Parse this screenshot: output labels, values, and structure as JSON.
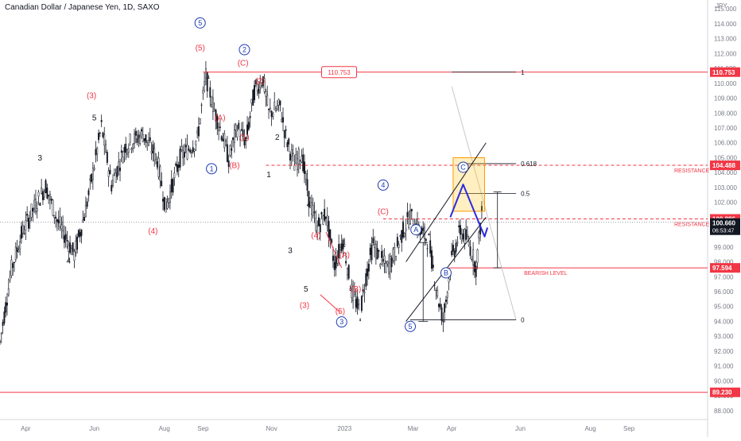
{
  "title": "Canadian Dollar / Japanese Yen, 1D, SAXO",
  "chart_data": {
    "type": "candlestick",
    "currency": "JPY",
    "ylim": [
      87.4,
      115.6
    ],
    "xlim": [
      0,
      495
    ],
    "grid": false,
    "y_ticks": [
      88,
      89,
      90,
      91,
      92,
      93,
      94,
      95,
      96,
      97,
      98,
      99,
      100,
      101,
      102,
      103,
      104,
      105,
      106,
      107,
      108,
      109,
      110,
      111,
      112,
      113,
      114,
      115
    ],
    "x_ticks": [
      {
        "label": "Apr",
        "x": 18
      },
      {
        "label": "Jun",
        "x": 66
      },
      {
        "label": "Aug",
        "x": 115
      },
      {
        "label": "Sep",
        "x": 142
      },
      {
        "label": "Nov",
        "x": 190
      },
      {
        "label": "2023",
        "x": 241
      },
      {
        "label": "Mar",
        "x": 289
      },
      {
        "label": "Apr",
        "x": 316
      },
      {
        "label": "Jun",
        "x": 364
      },
      {
        "label": "Aug",
        "x": 413
      },
      {
        "label": "Sep",
        "x": 440
      }
    ],
    "price_path": [
      [
        0,
        92.6
      ],
      [
        8,
        97.5
      ],
      [
        15,
        99.8
      ],
      [
        22,
        101.3
      ],
      [
        32,
        103.1
      ],
      [
        40,
        100.8
      ],
      [
        52,
        98.5
      ],
      [
        60,
        101.5
      ],
      [
        66,
        104.5
      ],
      [
        71,
        107.1
      ],
      [
        78,
        103.2
      ],
      [
        88,
        105.8
      ],
      [
        100,
        106.6
      ],
      [
        110,
        104.9
      ],
      [
        116,
        101.6
      ],
      [
        126,
        105.0
      ],
      [
        138,
        106.2
      ],
      [
        144,
        110.5
      ],
      [
        150,
        108.2
      ],
      [
        156,
        106.4
      ],
      [
        160,
        104.9
      ],
      [
        166,
        107.0
      ],
      [
        172,
        106.1
      ],
      [
        178,
        109.5
      ],
      [
        184,
        110.3
      ],
      [
        188,
        108.0
      ],
      [
        196,
        108.4
      ],
      [
        200,
        106.4
      ],
      [
        206,
        104.5
      ],
      [
        211,
        105.3
      ],
      [
        216,
        102.3
      ],
      [
        222,
        100.3
      ],
      [
        228,
        101.3
      ],
      [
        234,
        97.8
      ],
      [
        240,
        99.5
      ],
      [
        246,
        96.0
      ],
      [
        252,
        94.6
      ],
      [
        256,
        97.0
      ],
      [
        261,
        99.2
      ],
      [
        266,
        98.2
      ],
      [
        271,
        97.6
      ],
      [
        276,
        98.5
      ],
      [
        282,
        100.1
      ],
      [
        287,
        101.1
      ],
      [
        292,
        100.3
      ],
      [
        300,
        99.4
      ],
      [
        306,
        95.8
      ],
      [
        310,
        94.1
      ],
      [
        316,
        98.2
      ],
      [
        322,
        100.1
      ],
      [
        328,
        99.3
      ],
      [
        333,
        97.6
      ],
      [
        337,
        101.3
      ]
    ],
    "horizontal_levels": [
      {
        "price": 110.753,
        "label": "110.753",
        "style": "solid",
        "color": "#f23645"
      },
      {
        "price": 104.488,
        "label": "104.488",
        "style": "dashed",
        "color": "#f23645",
        "note": "RESISTANCE"
      },
      {
        "price": 100.886,
        "label": "100.886",
        "style": "dashed",
        "color": "#f23645",
        "note": "RESISTANCE"
      },
      {
        "price": 97.594,
        "label": "97.594",
        "style": "solid",
        "color": "#f23645",
        "note": "BEARISH LEVEL"
      },
      {
        "price": 89.23,
        "label": "89.230",
        "style": "solid",
        "color": "#f23645"
      }
    ],
    "last_price": {
      "price": 100.66,
      "label": "100.660",
      "countdown": "06:53:47"
    },
    "fibonacci": [
      {
        "ratio": "1",
        "price": 110.753
      },
      {
        "ratio": "0.618",
        "price": 104.6
      },
      {
        "ratio": "0.5",
        "price": 102.6
      },
      {
        "ratio": "0",
        "price": 94.1
      }
    ],
    "wave_labels": [
      {
        "text": "3",
        "x": 28,
        "price": 104.8,
        "color": "#131722"
      },
      {
        "text": "4",
        "x": 48,
        "price": 97.9,
        "color": "#131722"
      },
      {
        "text": "5",
        "x": 66,
        "price": 107.5,
        "color": "#131722"
      },
      {
        "text": "(3)",
        "x": 64,
        "price": 109.0,
        "color": "#f23645"
      },
      {
        "text": "(4)",
        "x": 107,
        "price": 99.9,
        "color": "#f23645"
      },
      {
        "text": "(5)",
        "x": 140,
        "price": 112.2,
        "color": "#f23645"
      },
      {
        "text": "5",
        "x": 140,
        "price": 113.9,
        "color": "#1e3bb3",
        "circled": true
      },
      {
        "text": "(A)",
        "x": 154,
        "price": 107.5,
        "color": "#f23645"
      },
      {
        "text": "(B)",
        "x": 164,
        "price": 104.3,
        "color": "#f23645"
      },
      {
        "text": "1",
        "x": 148,
        "price": 104.1,
        "color": "#1e3bb3",
        "circled": true
      },
      {
        "text": "(C)",
        "x": 170,
        "price": 111.2,
        "color": "#f23645"
      },
      {
        "text": "2",
        "x": 171,
        "price": 112.1,
        "color": "#1e3bb3",
        "circled": true
      },
      {
        "text": "(2)",
        "x": 182,
        "price": 110.0,
        "color": "#f23645"
      },
      {
        "text": "(1)",
        "x": 171,
        "price": 106.2,
        "color": "#f23645"
      },
      {
        "text": "2",
        "x": 194,
        "price": 106.2,
        "color": "#131722"
      },
      {
        "text": "1",
        "x": 188,
        "price": 103.7,
        "color": "#131722"
      },
      {
        "text": "4",
        "x": 216,
        "price": 101.7,
        "color": "#131722"
      },
      {
        "text": "3",
        "x": 203,
        "price": 98.6,
        "color": "#131722"
      },
      {
        "text": "(4)",
        "x": 221,
        "price": 99.6,
        "color": "#f23645"
      },
      {
        "text": "(A)",
        "x": 241,
        "price": 98.3,
        "color": "#f23645"
      },
      {
        "text": "(B)",
        "x": 249,
        "price": 96.0,
        "color": "#f23645"
      },
      {
        "text": "5",
        "x": 214,
        "price": 96.0,
        "color": "#131722"
      },
      {
        "text": "(3)",
        "x": 213,
        "price": 94.9,
        "color": "#f23645"
      },
      {
        "text": "(5)",
        "x": 238,
        "price": 94.5,
        "color": "#f23645"
      },
      {
        "text": "3",
        "x": 239,
        "price": 93.8,
        "color": "#1e3bb3",
        "circled": true
      },
      {
        "text": "4",
        "x": 268,
        "price": 103.0,
        "color": "#1e3bb3",
        "circled": true
      },
      {
        "text": "(C)",
        "x": 268,
        "price": 101.2,
        "color": "#f23645"
      },
      {
        "text": "A",
        "x": 291,
        "price": 100.0,
        "color": "#1e3bb3",
        "circled": true
      },
      {
        "text": "B",
        "x": 312,
        "price": 97.1,
        "color": "#1e3bb3",
        "circled": true
      },
      {
        "text": "C",
        "x": 324,
        "price": 104.2,
        "color": "#1e3bb3",
        "circled": true
      },
      {
        "text": "5",
        "x": 287,
        "price": 93.5,
        "color": "#1e3bb3",
        "circled": true
      }
    ],
    "channel": {
      "upper": [
        [
          284,
          98.0
        ],
        [
          340,
          106.0
        ]
      ],
      "lower": [
        [
          284,
          94.0
        ],
        [
          340,
          101.0
        ]
      ]
    },
    "wedge_lines": [
      [
        [
          228,
          100.0
        ],
        [
          239,
          97.6
        ]
      ],
      [
        [
          224,
          95.8
        ],
        [
          238,
          94.6
        ]
      ]
    ],
    "projection": [
      [
        315,
        101.0
      ],
      [
        324,
        103.2
      ],
      [
        339,
        99.7
      ],
      [
        341,
        100.3
      ]
    ],
    "target_zone": {
      "x0": 317,
      "x1": 339,
      "price_low": 101.4,
      "price_high": 105.0
    },
    "measure": {
      "x": 348,
      "top": 102.7,
      "bottom": 97.6
    },
    "vertical_tick": {
      "x": 296,
      "top": 99.3,
      "bottom": 94.0
    },
    "fib_diagonal": [
      [
        316,
        109.8
      ],
      [
        361,
        94.1
      ]
    ],
    "level_notes_x": 361,
    "annotations": [
      "RESISTANCE",
      "RESISTANCE",
      "BEARISH LEVEL"
    ]
  }
}
